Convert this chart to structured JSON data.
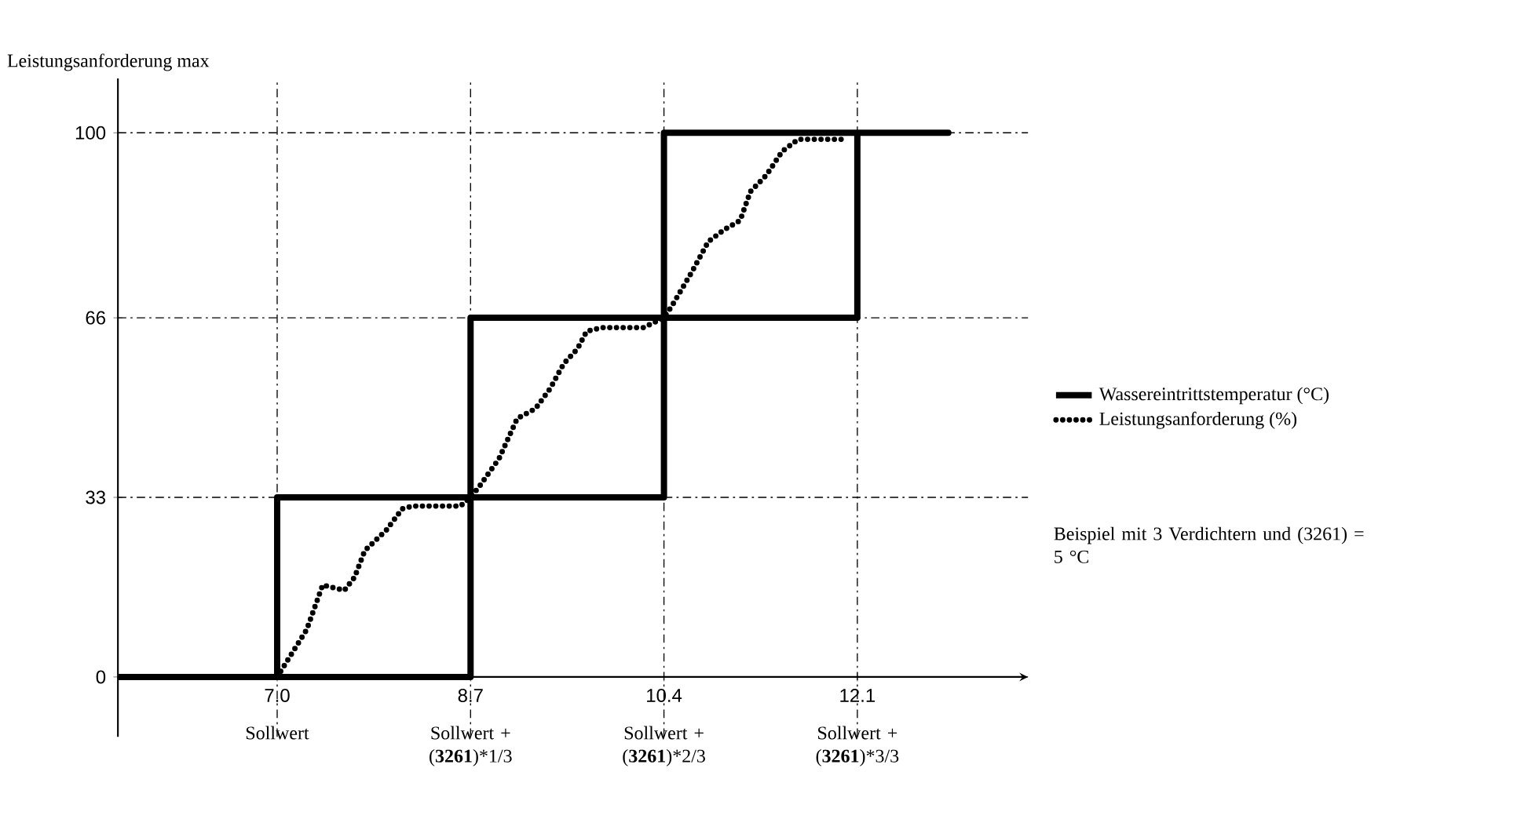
{
  "chart_data": {
    "type": "line",
    "ylabel": "Leistungsanforderung max",
    "xlim": [
      5.6,
      13.6
    ],
    "ylim": [
      -11,
      110
    ],
    "xticks": [
      {
        "value": 7.0,
        "label": "7.0"
      },
      {
        "value": 8.7,
        "label": "8.7"
      },
      {
        "value": 10.4,
        "label": "10.4"
      },
      {
        "value": 12.1,
        "label": "12.1"
      }
    ],
    "yticks": [
      0,
      33,
      66,
      100
    ],
    "grid": true,
    "legend": "right",
    "series": [
      {
        "name": "Wassereintrittstemperatur (°C)",
        "color": "#000000",
        "line_style": "solid",
        "x": [
          5.6,
          8.7,
          8.7,
          10.4,
          10.4,
          12.1,
          12.1,
          12.9,
          10.4,
          10.4,
          8.7,
          8.7,
          7.0,
          7.0
        ],
        "values": [
          0,
          0,
          33,
          33,
          66,
          66,
          100,
          100,
          100,
          66,
          66,
          33,
          33,
          0
        ]
      },
      {
        "name": "Leistungsanforderung (%)",
        "color": "#000000",
        "line_style": "dotted",
        "x": [
          7.0,
          7.26,
          7.4,
          7.59,
          7.68,
          7.77,
          7.96,
          8.1,
          8.19,
          8.61,
          8.7,
          8.78,
          8.95,
          9.11,
          9.27,
          9.4,
          9.52,
          9.64,
          9.72,
          9.85,
          10.22,
          10.4,
          10.47,
          10.65,
          10.79,
          10.93,
          11.07,
          11.16,
          11.3,
          11.44,
          11.58,
          11.99
        ],
        "values": [
          0,
          8.7,
          16.9,
          15.9,
          18.3,
          23.2,
          27,
          30.9,
          31.4,
          31.4,
          33,
          35.1,
          40.1,
          47.5,
          49.3,
          53,
          57.6,
          60.3,
          63.5,
          64.2,
          64.2,
          66,
          68.2,
          74.6,
          80,
          82.2,
          83.9,
          89.2,
          92.2,
          96.6,
          98.8,
          98.8
        ]
      }
    ],
    "annotations": [
      "Sollwert",
      "Sollwert + (**3261**)*1/3",
      "Sollwert + (**3261**)*2/3",
      "Sollwert + (**3261**)*3/3",
      "Beispiel mit 3 Verdichtern und (3261) = 5 °C"
    ]
  }
}
